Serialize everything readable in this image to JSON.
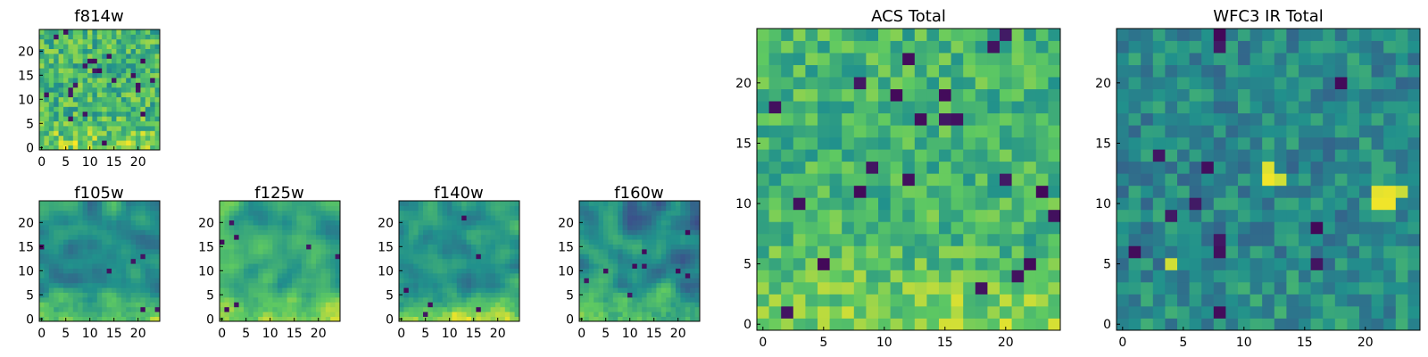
{
  "figure": {
    "colormap": "viridis",
    "colormap_stops": [
      "#440154",
      "#3b528b",
      "#21918c",
      "#5ec962",
      "#fde725"
    ],
    "axis_color": "#000000",
    "background": "#ffffff"
  },
  "chart_data": [
    {
      "type": "heatmap",
      "id": "f814w",
      "title": "f814w",
      "grid_size": 25,
      "xlim": [
        -0.5,
        24.5
      ],
      "ylim": [
        -0.5,
        24.5
      ],
      "xticks": [
        "0",
        "5",
        "10",
        "15",
        "20"
      ],
      "yticks": [
        "0",
        "5",
        "10",
        "15",
        "20"
      ],
      "value_summary": "mostly green to yellow noise, brighter band near y 0-3",
      "seed": 11,
      "mean": 0.66,
      "noise": 0.2,
      "smooth": 0,
      "bottom_boost": 0.2,
      "dark_fraction": 0.03
    },
    {
      "type": "heatmap",
      "id": "f105w",
      "title": "f105w",
      "grid_size": 25,
      "xlim": [
        -0.5,
        24.5
      ],
      "ylim": [
        -0.5,
        24.5
      ],
      "xticks": [
        "0",
        "5",
        "10",
        "15",
        "20"
      ],
      "yticks": [
        "0",
        "5",
        "10",
        "15",
        "20"
      ],
      "value_summary": "smooth teal-green field, yellow region near y 0-6",
      "seed": 23,
      "mean": 0.5,
      "noise": 0.2,
      "smooth": 2,
      "bottom_boost": 0.34,
      "dark_fraction": 0.01
    },
    {
      "type": "heatmap",
      "id": "f125w",
      "title": "f125w",
      "grid_size": 25,
      "xlim": [
        -0.5,
        24.5
      ],
      "ylim": [
        -0.5,
        24.5
      ],
      "xticks": [
        "0",
        "5",
        "10",
        "15",
        "20"
      ],
      "yticks": [
        "0",
        "5",
        "10",
        "15",
        "20"
      ],
      "value_summary": "green field with yellow patches, brightest near y 3-8",
      "seed": 37,
      "mean": 0.6,
      "noise": 0.2,
      "smooth": 2,
      "bottom_boost": 0.3,
      "dark_fraction": 0.01
    },
    {
      "type": "heatmap",
      "id": "f140w",
      "title": "f140w",
      "grid_size": 25,
      "xlim": [
        -0.5,
        24.5
      ],
      "ylim": [
        -0.5,
        24.5
      ],
      "xticks": [
        "0",
        "5",
        "10",
        "15",
        "20"
      ],
      "yticks": [
        "0",
        "5",
        "10",
        "15",
        "20"
      ],
      "value_summary": "green-teal field, yellow band along bottom rows",
      "seed": 41,
      "mean": 0.52,
      "noise": 0.2,
      "smooth": 2,
      "bottom_boost": 0.36,
      "dark_fraction": 0.01
    },
    {
      "type": "heatmap",
      "id": "f160w",
      "title": "f160w",
      "grid_size": 25,
      "xlim": [
        -0.5,
        24.5
      ],
      "ylim": [
        -0.5,
        24.5
      ],
      "xticks": [
        "0",
        "5",
        "10",
        "15",
        "20"
      ],
      "yticks": [
        "0",
        "5",
        "10",
        "15",
        "20"
      ],
      "value_summary": "teal field with dark spots, bright yellow near y 0-3",
      "seed": 53,
      "mean": 0.48,
      "noise": 0.22,
      "smooth": 2,
      "bottom_boost": 0.42,
      "dark_fraction": 0.02
    },
    {
      "type": "heatmap",
      "id": "acs-total",
      "title": "ACS Total",
      "grid_size": 25,
      "xlim": [
        -0.5,
        24.5
      ],
      "ylim": [
        -0.5,
        24.5
      ],
      "xticks": [
        "0",
        "5",
        "10",
        "15",
        "20"
      ],
      "yticks": [
        "0",
        "5",
        "10",
        "15",
        "20"
      ],
      "value_summary": "green to yellow-green field, bright yellow near y 0-2, a few dark purple pixels",
      "seed": 67,
      "mean": 0.66,
      "noise": 0.16,
      "smooth": 0,
      "bottom_boost": 0.2,
      "dark_fraction": 0.025
    },
    {
      "type": "heatmap",
      "id": "wfc3-ir-total",
      "title": "WFC3 IR Total",
      "grid_size": 25,
      "xlim": [
        -0.5,
        24.5
      ],
      "ylim": [
        -0.5,
        24.5
      ],
      "xticks": [
        "0",
        "5",
        "10",
        "15",
        "20"
      ],
      "yticks": [
        "0",
        "5",
        "10",
        "15",
        "20"
      ],
      "value_summary": "teal-blue field with dark pixels, bright yellow blobs near (12,12) and (22,10)",
      "seed": 79,
      "mean": 0.47,
      "noise": 0.15,
      "smooth": 0,
      "bottom_boost": 0.05,
      "dark_fraction": 0.03,
      "hotspots": [
        [
          12,
          12,
          0.98
        ],
        [
          12,
          13,
          0.95
        ],
        [
          13,
          12,
          0.93
        ],
        [
          21,
          10,
          0.98
        ],
        [
          22,
          10,
          0.98
        ],
        [
          21,
          11,
          0.96
        ],
        [
          22,
          11,
          0.97
        ],
        [
          23,
          11,
          0.92
        ],
        [
          4,
          5,
          0.93
        ]
      ]
    }
  ]
}
